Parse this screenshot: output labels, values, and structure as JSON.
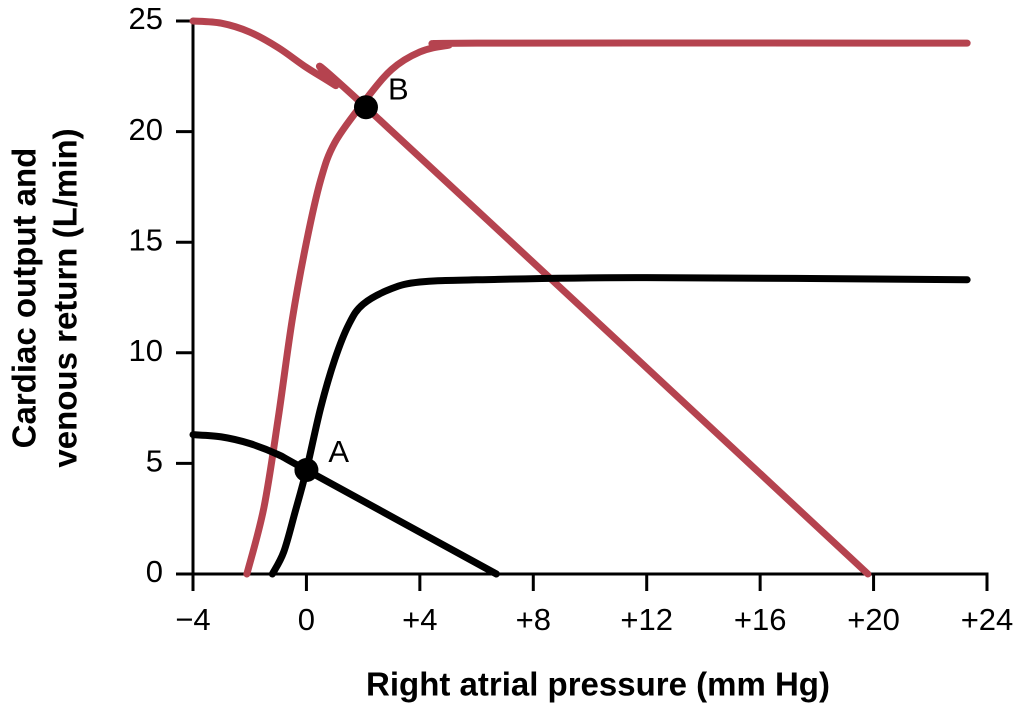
{
  "chart_data": {
    "type": "line",
    "xlabel": "Right atrial pressure (mm Hg)",
    "ylabel": [
      "Cardiac output and",
      "venous return (L/min)"
    ],
    "xlim": [
      -4,
      24
    ],
    "ylim": [
      0,
      25
    ],
    "xticks": [
      {
        "value": -4,
        "label": "−4"
      },
      {
        "value": 0,
        "label": "0"
      },
      {
        "value": 4,
        "label": "+4"
      },
      {
        "value": 8,
        "label": "+8"
      },
      {
        "value": 12,
        "label": "+12"
      },
      {
        "value": 16,
        "label": "+16"
      },
      {
        "value": 20,
        "label": "+20"
      },
      {
        "value": 24,
        "label": "+24"
      }
    ],
    "yticks": [
      0,
      5,
      10,
      15,
      20,
      25
    ],
    "series": [
      {
        "color": "#b5434f",
        "x": [
          -2.1,
          -1.5,
          -1,
          -0.5,
          0,
          0.5,
          1,
          2,
          3,
          4,
          5,
          6,
          23.3
        ],
        "values": [
          0,
          3,
          7,
          11.5,
          15,
          17.8,
          19.5,
          21.3,
          22.8,
          23.6,
          23.9,
          24,
          24
        ]
      },
      {
        "color": "#b5434f",
        "x": [
          -4,
          -3,
          -2,
          -1,
          0,
          1,
          2.1,
          19.8
        ],
        "values": [
          25,
          24.9,
          24.5,
          23.8,
          22.9,
          22.1,
          21.1,
          0
        ]
      },
      {
        "color": "#000000",
        "x": [
          -1.2,
          -0.8,
          -0.4,
          0,
          0.5,
          1,
          1.5,
          2,
          3,
          4,
          6,
          12,
          23.3
        ],
        "values": [
          0,
          1,
          2.8,
          4.7,
          7.5,
          9.7,
          11.3,
          12.2,
          12.9,
          13.2,
          13.3,
          13.4,
          13.3
        ]
      },
      {
        "color": "#000000",
        "x": [
          -4,
          -3,
          -2,
          -1,
          0,
          6.7
        ],
        "values": [
          6.3,
          6.2,
          5.9,
          5.4,
          4.7,
          0
        ]
      }
    ],
    "points": [
      {
        "label": "A",
        "x": 0,
        "y": 4.7
      },
      {
        "label": "B",
        "x": 2.1,
        "y": 21.1
      }
    ]
  }
}
